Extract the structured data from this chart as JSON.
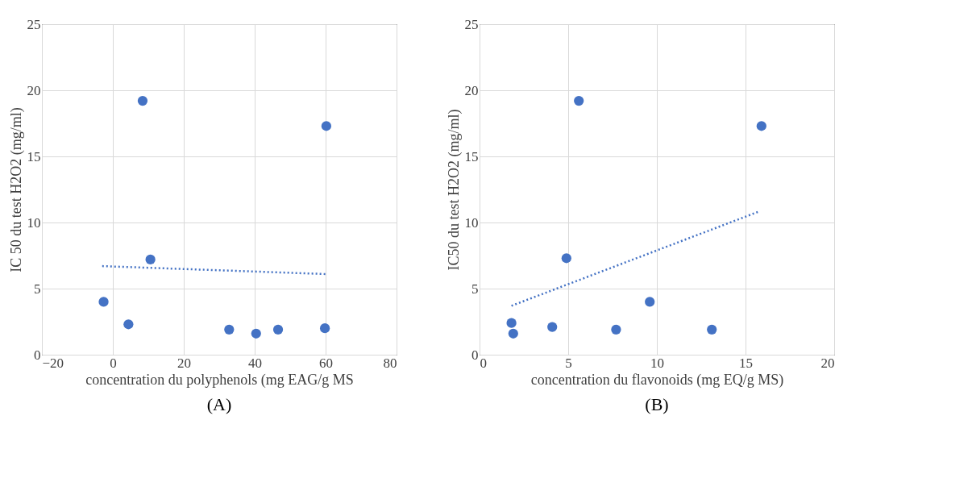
{
  "chart_data": [
    {
      "type": "scatter",
      "xlabel": "concentration du polyphenols (mg EAG/g MS",
      "ylabel": "IC 50 du test H2O2 (mg/ml)",
      "xlim": [
        -20,
        80
      ],
      "xticks": [
        -20,
        0,
        20,
        40,
        60,
        80
      ],
      "ylim": [
        0,
        25
      ],
      "yticks": [
        0,
        5,
        10,
        15,
        20,
        25
      ],
      "grid": true,
      "annotations": [
        "(A)"
      ],
      "series": [
        {
          "color": "#4472c4",
          "marker": "circle",
          "x": [
            -2.6,
            4.4,
            8.4,
            10.6,
            32.8,
            40.4,
            46.6,
            59.8,
            60.2
          ],
          "values": [
            4.0,
            2.3,
            19.2,
            7.2,
            1.9,
            1.6,
            1.9,
            2.0,
            17.3
          ]
        },
        {
          "type": "line",
          "color": "#4472c4",
          "line_style": "dotted",
          "marker": "none",
          "x": [
            -3,
            60
          ],
          "values": [
            6.7,
            6.1
          ]
        }
      ]
    },
    {
      "type": "scatter",
      "xlabel": "concentration du flavonoids (mg EQ/g MS)",
      "ylabel": "IC50 du test H2O2 (mg/ml)",
      "xlim": [
        0,
        20
      ],
      "xticks": [
        0,
        5,
        10,
        15,
        20
      ],
      "ylim": [
        0,
        25
      ],
      "yticks": [
        0,
        5,
        10,
        15,
        20,
        25
      ],
      "grid": true,
      "annotations": [
        "(B)"
      ],
      "series": [
        {
          "color": "#4472c4",
          "marker": "circle",
          "x": [
            1.8,
            1.9,
            4.1,
            4.9,
            5.6,
            7.7,
            9.6,
            13.1,
            15.9
          ],
          "values": [
            2.4,
            1.6,
            2.1,
            7.3,
            19.2,
            1.9,
            4.0,
            1.9,
            17.3
          ]
        },
        {
          "type": "line",
          "color": "#4472c4",
          "line_style": "dotted",
          "marker": "none",
          "x": [
            1.8,
            15.7
          ],
          "values": [
            3.7,
            10.8
          ]
        }
      ]
    }
  ]
}
